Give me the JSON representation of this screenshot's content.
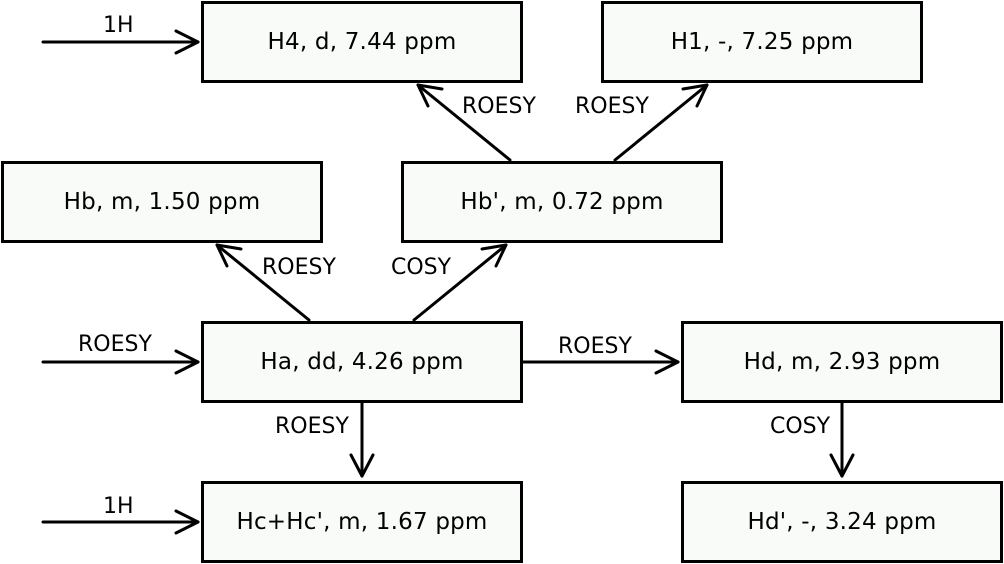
{
  "nodes": {
    "h4": "H4, d, 7.44 ppm",
    "h1": "H1, -, 7.25 ppm",
    "hb": "Hb, m, 1.50 ppm",
    "hbp": "Hb', m, 0.72 ppm",
    "ha": "Ha, dd, 4.26 ppm",
    "hd": "Hd, m, 2.93 ppm",
    "hc": "Hc+Hc', m, 1.67 ppm",
    "hdp": "Hd', -, 3.24 ppm"
  },
  "edges": {
    "in_h4": "1H",
    "in_ha": "ROESY",
    "in_hc": "1H",
    "hbp_h4": "ROESY",
    "hbp_h1": "ROESY",
    "ha_hb": "ROESY",
    "ha_hbp": "COSY",
    "ha_hd": "ROESY",
    "ha_hc": "ROESY",
    "hd_hdp": "COSY"
  }
}
